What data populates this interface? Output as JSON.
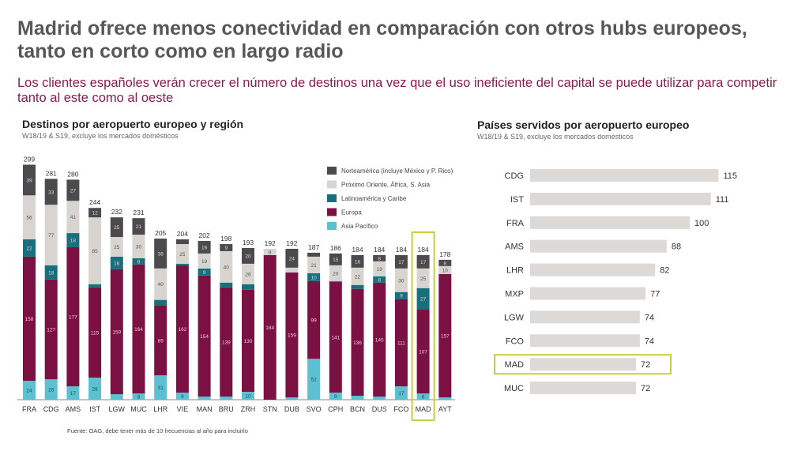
{
  "header": {
    "title": "Madrid ofrece menos conectividad en comparación con otros hubs europeos, tanto en corto como en largo radio",
    "subtitle": "Los clientes españoles verán crecer el número de destinos una vez que el uso ineficiente del capital se puede utilizar para competir tanto al este como al oeste"
  },
  "source": "Fuente: OAG, debe tener más de 10 frecuencias al año para incluirlo",
  "colors": {
    "na": "#4b4b4d",
    "me": "#d8d5d1",
    "la": "#17707c",
    "eu": "#7b1042",
    "ap": "#5cc0d0",
    "highlight": "#c9cf3a",
    "bar2": "#dcd9d6"
  },
  "chart_data": [
    {
      "type": "bar",
      "stacked": true,
      "title": "Destinos por aeropuerto europeo y región",
      "subtitle": "W18/19 & S19, excluye los mercados domésticos",
      "categories": [
        "FRA",
        "CDG",
        "AMS",
        "IST",
        "LGW",
        "MUC",
        "LHR",
        "VIE",
        "MAN",
        "BRU",
        "ZRH",
        "STN",
        "DUB",
        "SVO",
        "CPH",
        "BCN",
        "DUS",
        "FCO",
        "MAD",
        "AYT"
      ],
      "totals": [
        299,
        281,
        280,
        244,
        232,
        231,
        205,
        204,
        202,
        198,
        193,
        192,
        192,
        187,
        186,
        184,
        184,
        184,
        184,
        178
      ],
      "highlight": "MAD",
      "legend_position": "top-right",
      "series": [
        {
          "key": "ap",
          "name": "Asia Pacífico",
          "values": [
            24,
            26,
            17,
            28,
            7,
            8,
            31,
            9,
            4,
            4,
            10,
            0,
            3,
            52,
            9,
            5,
            4,
            17,
            8,
            3
          ]
        },
        {
          "key": "eu",
          "name": "Europa",
          "values": [
            158,
            127,
            177,
            115,
            159,
            164,
            89,
            162,
            154,
            139,
            130,
            184,
            159,
            99,
            141,
            136,
            145,
            111,
            107,
            157
          ]
        },
        {
          "key": "la",
          "name": "Latinoamérica y Caribe",
          "values": [
            22,
            18,
            18,
            4,
            16,
            8,
            7,
            2,
            9,
            6,
            7,
            0,
            0,
            10,
            1,
            5,
            8,
            9,
            27,
            0
          ]
        },
        {
          "key": "me",
          "name": "Próximo Oriente, África, S. Asia",
          "values": [
            56,
            77,
            41,
            85,
            25,
            30,
            40,
            25,
            19,
            40,
            26,
            8,
            6,
            21,
            20,
            22,
            19,
            30,
            25,
            10
          ]
        },
        {
          "key": "na",
          "name": "Norteamérica (incluye México y P. Rico)",
          "values": [
            39,
            33,
            27,
            12,
            25,
            21,
            38,
            6,
            16,
            9,
            20,
            0,
            24,
            5,
            15,
            16,
            8,
            17,
            17,
            8
          ]
        }
      ]
    },
    {
      "type": "bar",
      "orientation": "horizontal",
      "title": "Países servidos por aeropuerto europeo",
      "subtitle": "W18/19 & S19, excluye los mercados domésticos",
      "categories": [
        "CDG",
        "IST",
        "FRA",
        "AMS",
        "LHR",
        "MXP",
        "LGW",
        "FCO",
        "MAD",
        "MUC"
      ],
      "values": [
        115,
        111,
        100,
        88,
        82,
        77,
        74,
        74,
        72,
        72
      ],
      "highlight": "MAD"
    }
  ]
}
